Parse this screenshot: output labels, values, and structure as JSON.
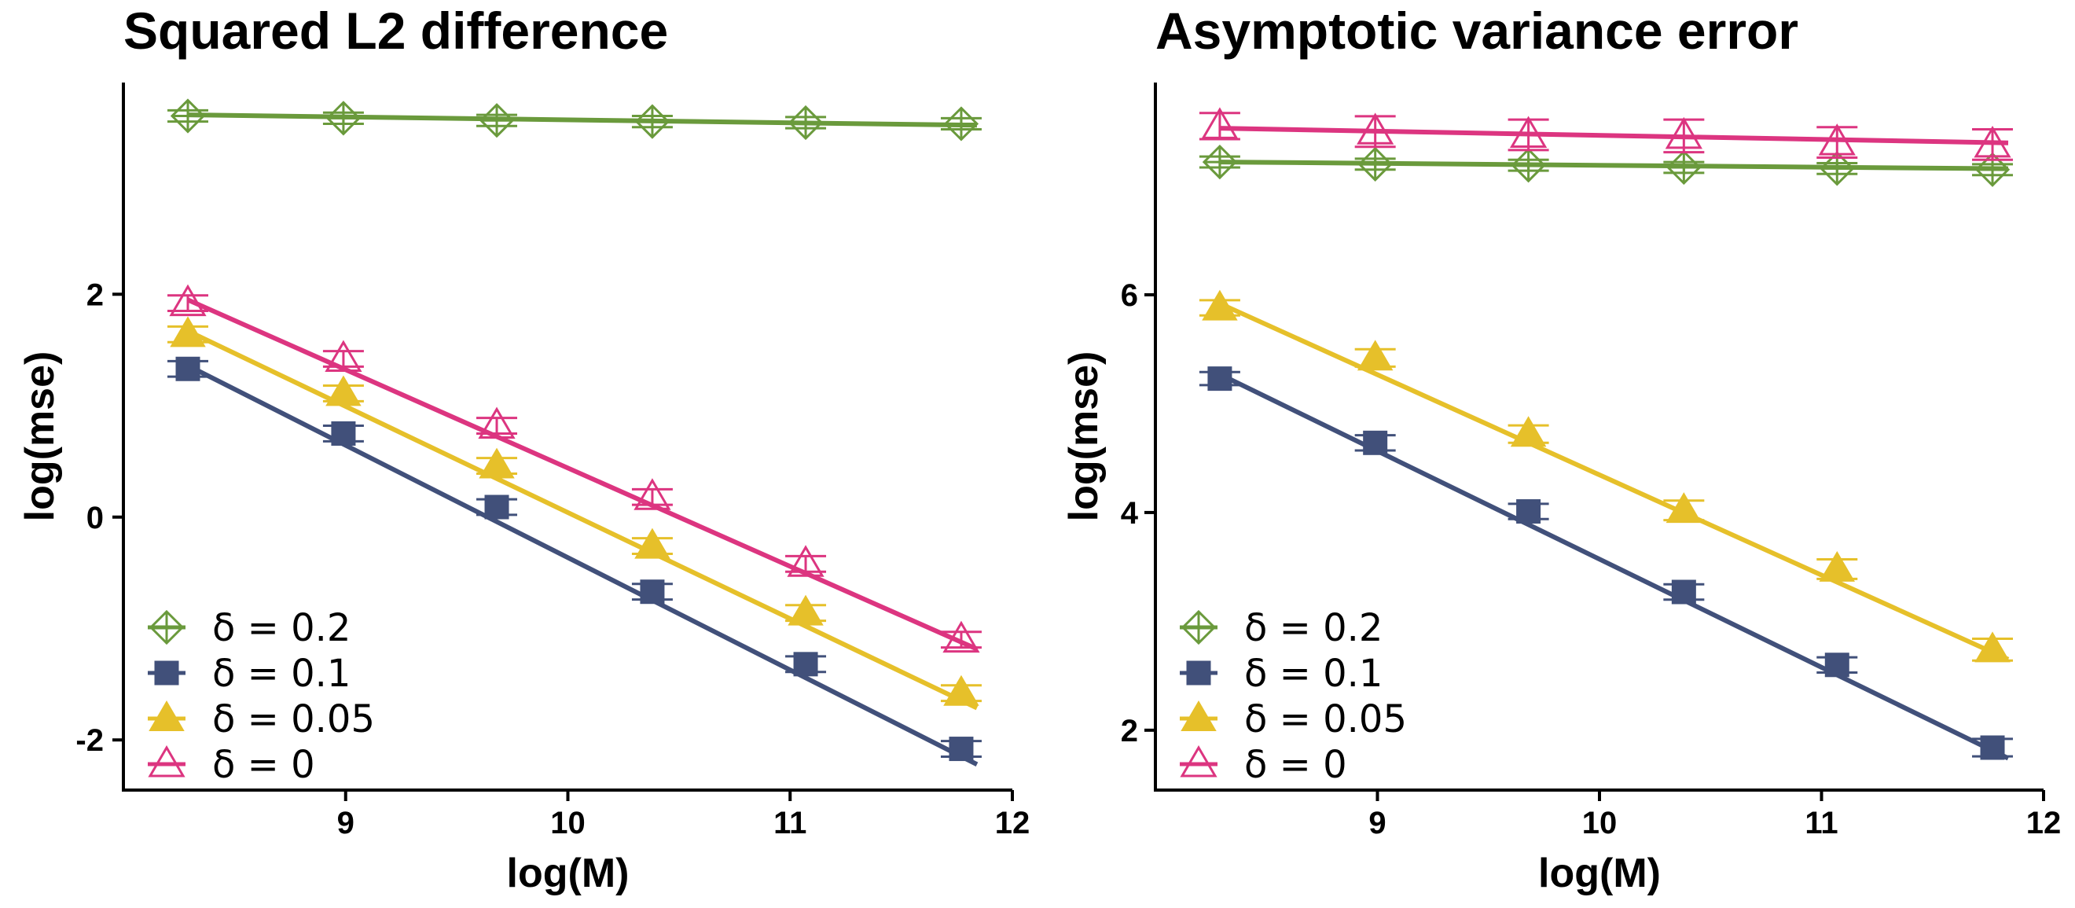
{
  "chart_data": [
    {
      "type": "line",
      "title": "Squared L2 difference",
      "xlabel": "log(M)",
      "ylabel": "log(mse)",
      "xlim": [
        8.0,
        12.0
      ],
      "ylim": [
        -2.45,
        3.9
      ],
      "xticks": [
        9,
        10,
        11,
        12
      ],
      "yticks": [
        -2,
        0,
        2
      ],
      "xtick_labels": [
        "9",
        "10",
        "11",
        "12"
      ],
      "ytick_labels": [
        "-2",
        "0",
        "2"
      ],
      "x": [
        8.29,
        8.99,
        9.68,
        10.38,
        11.07,
        11.77
      ],
      "legend_position": "bottom-left",
      "series": [
        {
          "name": "δ = 0.2",
          "color": "#6a9a3c",
          "marker": "diamond-plus",
          "values": [
            3.6,
            3.58,
            3.56,
            3.55,
            3.54,
            3.53
          ],
          "errors": [
            0.05,
            0.05,
            0.05,
            0.05,
            0.05,
            0.05
          ],
          "fit": [
            3.61,
            3.52
          ]
        },
        {
          "name": "δ = 0.1",
          "color": "#41507a",
          "marker": "square",
          "values": [
            1.33,
            0.75,
            0.09,
            -0.67,
            -1.32,
            -2.08
          ],
          "errors": [
            0.07,
            0.07,
            0.07,
            0.07,
            0.07,
            0.07
          ],
          "fit": [
            1.36,
            -2.1
          ]
        },
        {
          "name": "δ = 0.05",
          "color": "#e6c02a",
          "marker": "triangle-filled",
          "values": [
            1.64,
            1.11,
            0.46,
            -0.26,
            -0.86,
            -1.58
          ],
          "errors": [
            0.07,
            0.07,
            0.07,
            0.07,
            0.07,
            0.07
          ],
          "fit": [
            1.67,
            -1.6
          ]
        },
        {
          "name": "δ = 0",
          "color": "#dc3580",
          "marker": "triangle-open",
          "values": [
            1.92,
            1.42,
            0.82,
            0.18,
            -0.42,
            -1.1
          ],
          "errors": [
            0.07,
            0.07,
            0.07,
            0.07,
            0.07,
            0.07
          ],
          "fit": [
            1.95,
            -1.08
          ]
        }
      ]
    },
    {
      "type": "line",
      "title": "Asymptotic variance error",
      "xlabel": "log(M)",
      "ylabel": "log(mse)",
      "xlim": [
        8.0,
        12.0
      ],
      "ylim": [
        1.45,
        7.95
      ],
      "xticks": [
        9,
        10,
        11,
        12
      ],
      "yticks": [
        2,
        4,
        6
      ],
      "xtick_labels": [
        "9",
        "10",
        "11",
        "12"
      ],
      "ytick_labels": [
        "2",
        "4",
        "6"
      ],
      "x": [
        8.29,
        8.99,
        9.68,
        10.38,
        11.07,
        11.77
      ],
      "legend_position": "bottom-left",
      "series": [
        {
          "name": "δ = 0.2",
          "color": "#6a9a3c",
          "marker": "diamond-plus",
          "values": [
            7.22,
            7.2,
            7.19,
            7.17,
            7.16,
            7.15
          ],
          "errors": [
            0.05,
            0.05,
            0.05,
            0.05,
            0.05,
            0.05
          ],
          "fit": [
            7.22,
            7.16
          ]
        },
        {
          "name": "δ = 0.1",
          "color": "#41507a",
          "marker": "square",
          "values": [
            5.23,
            4.64,
            4.01,
            3.27,
            2.6,
            1.84
          ],
          "errors": [
            0.06,
            0.07,
            0.07,
            0.07,
            0.07,
            0.08
          ],
          "fit": [
            5.27,
            1.86
          ]
        },
        {
          "name": "δ = 0.05",
          "color": "#e6c02a",
          "marker": "triangle-filled",
          "values": [
            5.88,
            5.42,
            4.72,
            4.02,
            3.48,
            2.74
          ],
          "errors": [
            0.07,
            0.08,
            0.08,
            0.09,
            0.09,
            0.1
          ],
          "fit": [
            5.92,
            2.76
          ]
        },
        {
          "name": "δ = 0",
          "color": "#dc3580",
          "marker": "triangle-open",
          "values": [
            7.55,
            7.5,
            7.47,
            7.46,
            7.4,
            7.38
          ],
          "errors": [
            0.12,
            0.14,
            0.14,
            0.15,
            0.14,
            0.14
          ],
          "fit": [
            7.53,
            7.4
          ]
        }
      ]
    }
  ]
}
